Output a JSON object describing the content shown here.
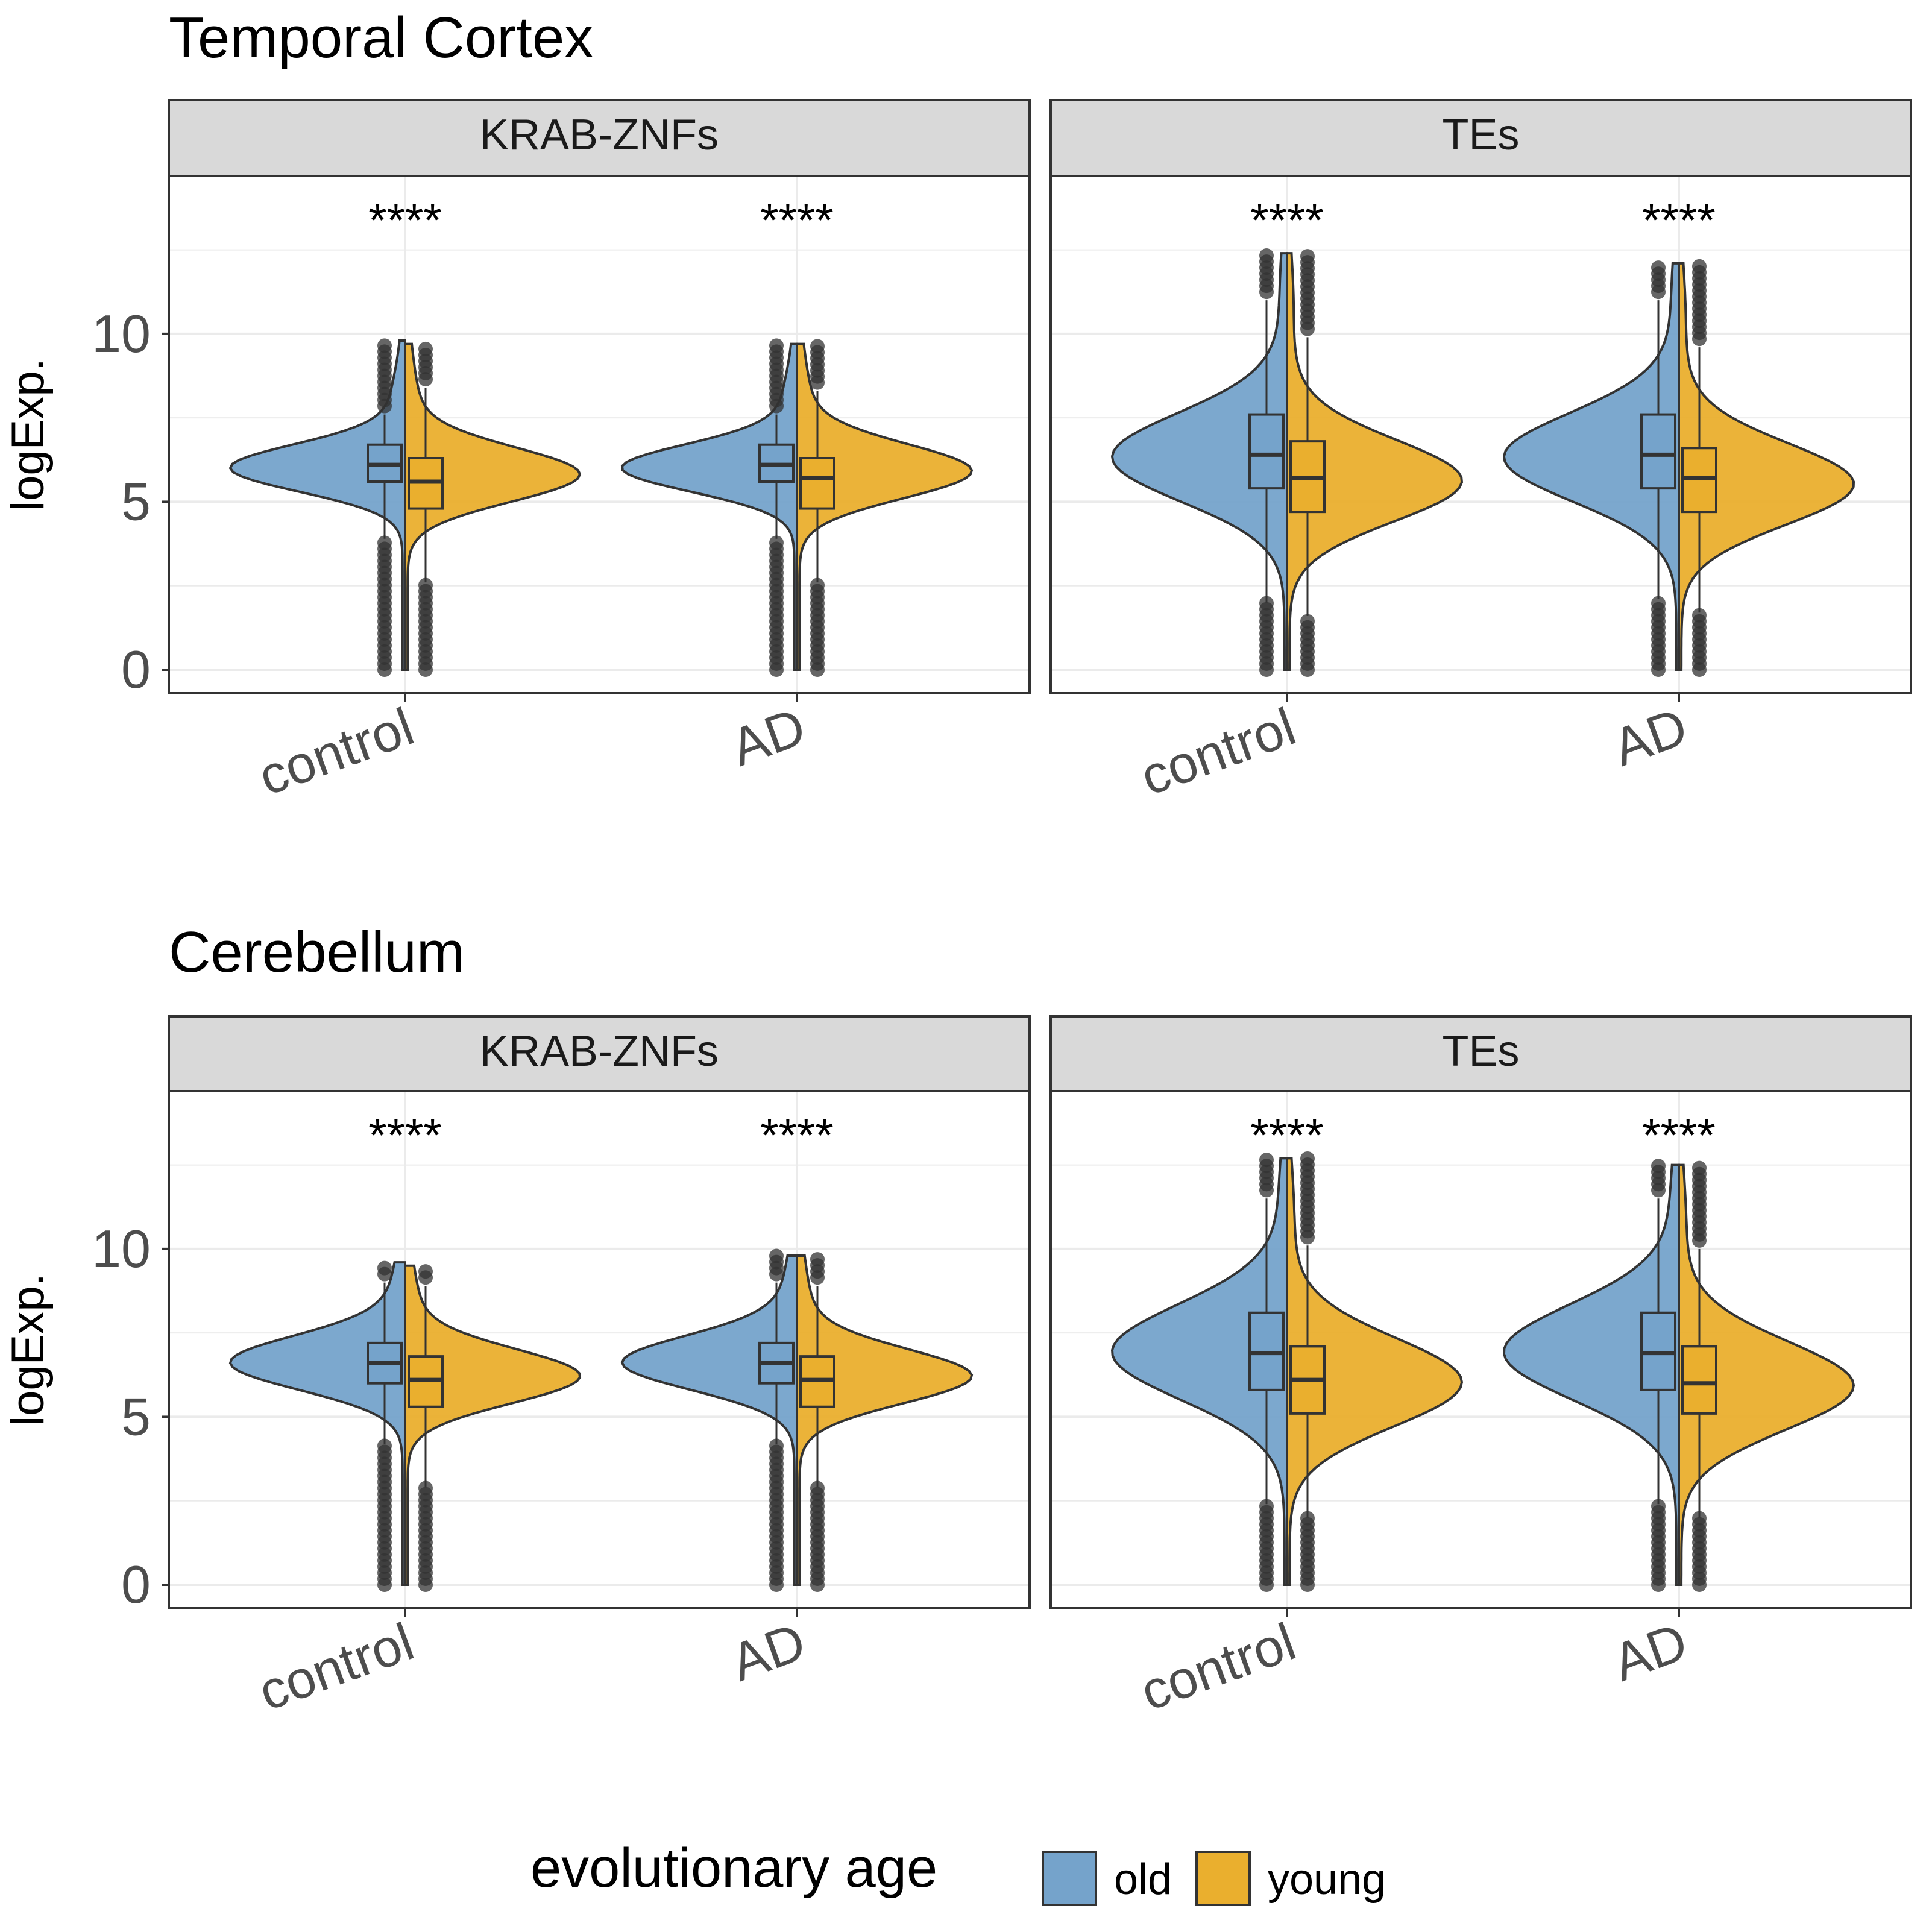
{
  "colors": {
    "old": "#75A3CB",
    "young": "#EAAF2E",
    "strip_bg": "#D9D9D9",
    "grid": "#EBEBEB",
    "box_line": "#333333",
    "outlier": "#333333"
  },
  "legend": {
    "title": "evolutionary age",
    "items": [
      {
        "label": "old",
        "color": "#75A3CB"
      },
      {
        "label": "young",
        "color": "#EAAF2E"
      }
    ],
    "position": "bottom"
  },
  "y_axis": {
    "label": "logExp.",
    "ticks": [
      "0",
      "5",
      "10"
    ]
  },
  "x_ticks": [
    "control",
    "AD"
  ],
  "significance_label": "****",
  "chart_data": [
    {
      "type": "split-violin",
      "title": "Temporal Cortex",
      "ylabel": "logExp.",
      "ylim": [
        -0.7,
        14.7
      ],
      "grid": true,
      "panels": [
        {
          "strip": "KRAB-ZNFs",
          "categories": [
            "control",
            "AD"
          ],
          "annotations": [
            "****",
            "****"
          ],
          "series": [
            {
              "name": "old",
              "groups": [
                {
                  "category": "control",
                  "median": 6.1,
                  "q1": 5.6,
                  "q3": 6.7,
                  "whisker_low": 3.9,
                  "whisker_high": 7.6,
                  "min": 0.0,
                  "max": 9.8,
                  "peak": 6.0,
                  "spread": 0.7
                },
                {
                  "category": "AD",
                  "median": 6.1,
                  "q1": 5.6,
                  "q3": 6.7,
                  "whisker_low": 3.9,
                  "whisker_high": 7.6,
                  "min": 0.0,
                  "max": 9.7,
                  "peak": 6.0,
                  "spread": 0.7
                }
              ]
            },
            {
              "name": "young",
              "groups": [
                {
                  "category": "control",
                  "median": 5.6,
                  "q1": 4.8,
                  "q3": 6.3,
                  "whisker_low": 2.6,
                  "whisker_high": 8.4,
                  "min": 0.0,
                  "max": 9.7,
                  "peak": 5.8,
                  "spread": 0.8
                },
                {
                  "category": "AD",
                  "median": 5.7,
                  "q1": 4.8,
                  "q3": 6.3,
                  "whisker_low": 2.6,
                  "whisker_high": 8.3,
                  "min": 0.0,
                  "max": 9.7,
                  "peak": 5.9,
                  "spread": 0.8
                }
              ]
            }
          ]
        },
        {
          "strip": "TEs",
          "categories": [
            "control",
            "AD"
          ],
          "annotations": [
            "****",
            "****"
          ],
          "series": [
            {
              "name": "old",
              "groups": [
                {
                  "category": "control",
                  "median": 6.4,
                  "q1": 5.4,
                  "q3": 7.6,
                  "whisker_low": 2.0,
                  "whisker_high": 11.0,
                  "min": 0.0,
                  "max": 12.4,
                  "peak": 6.3,
                  "spread": 1.3
                },
                {
                  "category": "AD",
                  "median": 6.4,
                  "q1": 5.4,
                  "q3": 7.6,
                  "whisker_low": 2.1,
                  "whisker_high": 11.0,
                  "min": 0.0,
                  "max": 12.1,
                  "peak": 6.3,
                  "spread": 1.3
                }
              ]
            },
            {
              "name": "young",
              "groups": [
                {
                  "category": "control",
                  "median": 5.7,
                  "q1": 4.7,
                  "q3": 6.8,
                  "whisker_low": 1.6,
                  "whisker_high": 9.9,
                  "min": 0.0,
                  "max": 12.4,
                  "peak": 5.6,
                  "spread": 1.2
                },
                {
                  "category": "AD",
                  "median": 5.7,
                  "q1": 4.7,
                  "q3": 6.6,
                  "whisker_low": 1.7,
                  "whisker_high": 9.6,
                  "min": 0.0,
                  "max": 12.1,
                  "peak": 5.5,
                  "spread": 1.2
                }
              ]
            }
          ]
        }
      ]
    },
    {
      "type": "split-violin",
      "title": "Cerebellum",
      "ylabel": "logExp.",
      "ylim": [
        -0.7,
        14.7
      ],
      "grid": true,
      "panels": [
        {
          "strip": "KRAB-ZNFs",
          "categories": [
            "control",
            "AD"
          ],
          "annotations": [
            "****",
            "****"
          ],
          "series": [
            {
              "name": "old",
              "groups": [
                {
                  "category": "control",
                  "median": 6.6,
                  "q1": 6.0,
                  "q3": 7.2,
                  "whisker_low": 4.2,
                  "whisker_high": 9.0,
                  "min": 0.0,
                  "max": 9.6,
                  "peak": 6.6,
                  "spread": 0.8
                },
                {
                  "category": "AD",
                  "median": 6.6,
                  "q1": 6.0,
                  "q3": 7.2,
                  "whisker_low": 4.2,
                  "whisker_high": 9.0,
                  "min": 0.0,
                  "max": 9.8,
                  "peak": 6.6,
                  "spread": 0.8
                }
              ]
            },
            {
              "name": "young",
              "groups": [
                {
                  "category": "control",
                  "median": 6.1,
                  "q1": 5.3,
                  "q3": 6.8,
                  "whisker_low": 2.9,
                  "whisker_high": 8.9,
                  "min": 0.0,
                  "max": 9.5,
                  "peak": 6.2,
                  "spread": 0.8
                },
                {
                  "category": "AD",
                  "median": 6.1,
                  "q1": 5.3,
                  "q3": 6.8,
                  "whisker_low": 2.9,
                  "whisker_high": 8.9,
                  "min": 0.0,
                  "max": 9.8,
                  "peak": 6.2,
                  "spread": 0.8
                }
              ]
            }
          ]
        },
        {
          "strip": "TEs",
          "categories": [
            "control",
            "AD"
          ],
          "annotations": [
            "****",
            "****"
          ],
          "series": [
            {
              "name": "old",
              "groups": [
                {
                  "category": "control",
                  "median": 6.9,
                  "q1": 5.8,
                  "q3": 8.1,
                  "whisker_low": 2.4,
                  "whisker_high": 11.5,
                  "min": 0.0,
                  "max": 12.7,
                  "peak": 6.9,
                  "spread": 1.4
                },
                {
                  "category": "AD",
                  "median": 6.9,
                  "q1": 5.8,
                  "q3": 8.1,
                  "whisker_low": 2.4,
                  "whisker_high": 11.5,
                  "min": 0.0,
                  "max": 12.5,
                  "peak": 6.9,
                  "spread": 1.4
                }
              ]
            },
            {
              "name": "young",
              "groups": [
                {
                  "category": "control",
                  "median": 6.1,
                  "q1": 5.1,
                  "q3": 7.1,
                  "whisker_low": 2.0,
                  "whisker_high": 10.1,
                  "min": 0.0,
                  "max": 12.7,
                  "peak": 6.0,
                  "spread": 1.3
                },
                {
                  "category": "AD",
                  "median": 6.0,
                  "q1": 5.1,
                  "q3": 7.1,
                  "whisker_low": 2.0,
                  "whisker_high": 10.0,
                  "min": 0.0,
                  "max": 12.5,
                  "peak": 5.9,
                  "spread": 1.3
                }
              ]
            }
          ]
        }
      ]
    }
  ]
}
